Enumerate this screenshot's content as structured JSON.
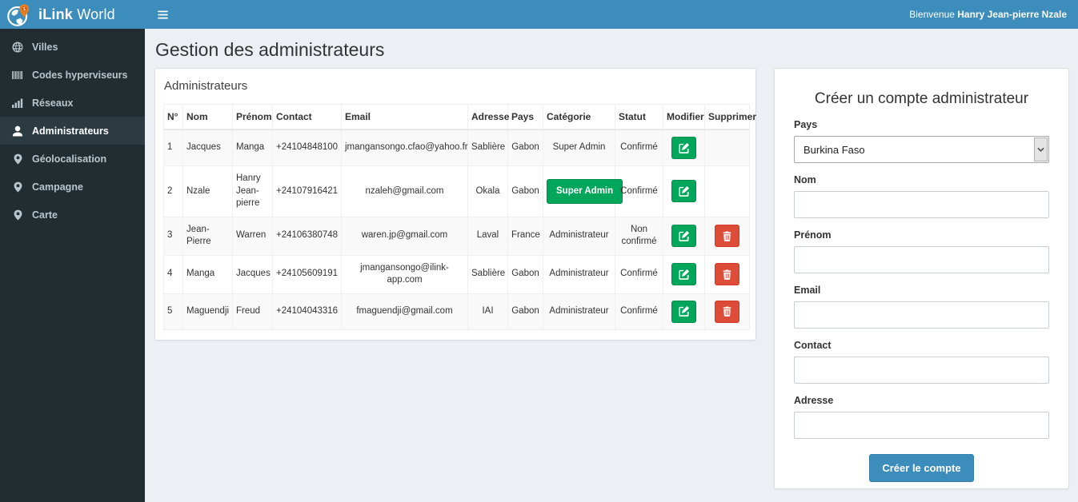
{
  "header": {
    "brand": {
      "bold": "iLink",
      "rest": " World"
    },
    "welcome": {
      "prefix": "Bienvenue ",
      "name": "Hanry Jean-pierre Nzale"
    }
  },
  "sidebar": {
    "items": [
      {
        "id": "villes",
        "label": "Villes",
        "icon": "globe-icon",
        "active": false
      },
      {
        "id": "codes-hyperviseurs",
        "label": "Codes hyperviseurs",
        "icon": "barcode-icon",
        "active": false
      },
      {
        "id": "reseaux",
        "label": "Réseaux",
        "icon": "signal-bars-icon",
        "active": false
      },
      {
        "id": "administrateurs",
        "label": "Administrateurs",
        "icon": "user-icon",
        "active": true
      },
      {
        "id": "geolocalisation",
        "label": "Géolocalisation",
        "icon": "map-marker-icon",
        "active": false
      },
      {
        "id": "campagne",
        "label": "Campagne",
        "icon": "map-marker-icon",
        "active": false
      },
      {
        "id": "carte",
        "label": "Carte",
        "icon": "map-marker-icon",
        "active": false
      }
    ]
  },
  "page": {
    "title": "Gestion des administrateurs"
  },
  "admins": {
    "panel_title": "Administrateurs",
    "columns": [
      "N°",
      "Nom",
      "Prénom",
      "Contact",
      "Email",
      "Adresse",
      "Pays",
      "Catégorie",
      "Statut",
      "Modifier",
      "Supprimer"
    ],
    "rows": [
      {
        "num": "1",
        "nom": "Jacques",
        "prenom": "Manga",
        "contact": "+24104848100",
        "email": "jmangansongo.cfao@yahoo.fr",
        "adresse": "Sablière",
        "pays": "Gabon",
        "categorie": "Super Admin",
        "categorie_badge": false,
        "statut": "Confirmé",
        "deletable": false
      },
      {
        "num": "2",
        "nom": "Nzale",
        "prenom": "Hanry Jean-pierre",
        "contact": "+24107916421",
        "email": "nzaleh@gmail.com",
        "adresse": "Okala",
        "pays": "Gabon",
        "categorie": "Super Admin",
        "categorie_badge": true,
        "statut": "Confirmé",
        "deletable": false
      },
      {
        "num": "3",
        "nom": "Jean-Pierre",
        "prenom": "Warren",
        "contact": "+24106380748",
        "email": "waren.jp@gmail.com",
        "adresse": "Laval",
        "pays": "France",
        "categorie": "Administrateur",
        "categorie_badge": false,
        "statut": "Non confirmé",
        "deletable": true
      },
      {
        "num": "4",
        "nom": "Manga",
        "prenom": "Jacques",
        "contact": "+24105609191",
        "email": "jmangansongo@ilink-app.com",
        "adresse": "Sablière",
        "pays": "Gabon",
        "categorie": "Administrateur",
        "categorie_badge": false,
        "statut": "Confirmé",
        "deletable": true
      },
      {
        "num": "5",
        "nom": "Maguendji",
        "prenom": "Freud",
        "contact": "+24104043316",
        "email": "fmaguendji@gmail.com",
        "adresse": "IAI",
        "pays": "Gabon",
        "categorie": "Administrateur",
        "categorie_badge": false,
        "statut": "Confirmé",
        "deletable": true
      }
    ]
  },
  "form": {
    "title": "Créer un compte administrateur",
    "fields": [
      {
        "id": "pays",
        "label": "Pays",
        "type": "select",
        "value": "Burkina Faso",
        "placeholder": ""
      },
      {
        "id": "nom",
        "label": "Nom",
        "type": "text",
        "value": "",
        "placeholder": ""
      },
      {
        "id": "prenom",
        "label": "Prénom",
        "type": "text",
        "value": "",
        "placeholder": ""
      },
      {
        "id": "email",
        "label": "Email",
        "type": "text",
        "value": "",
        "placeholder": ""
      },
      {
        "id": "contact",
        "label": "Contact",
        "type": "text",
        "value": "",
        "placeholder": ""
      },
      {
        "id": "adresse",
        "label": "Adresse",
        "type": "text",
        "value": "",
        "placeholder": ""
      }
    ],
    "submit_label": "Créer le compte"
  },
  "colors": {
    "header": "#3c8dbc",
    "sidebar": "#222d32",
    "sidebar_active": "#2c3b41",
    "success": "#00a65a",
    "danger": "#dd4b39",
    "primary": "#3c8dbc",
    "body_bg": "#ecf0f5"
  }
}
